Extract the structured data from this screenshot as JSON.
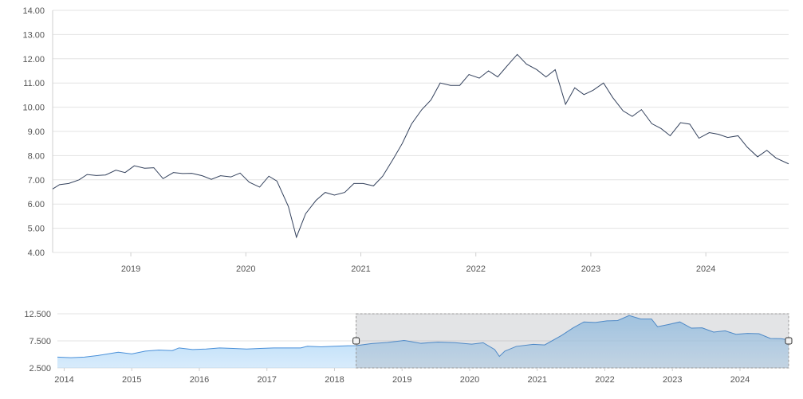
{
  "chart_data": [
    {
      "type": "line",
      "title": "",
      "xlabel": "",
      "ylabel": "",
      "ylim": [
        4.0,
        14.0
      ],
      "xlim": [
        2018.32,
        2024.72
      ],
      "grid": true,
      "legend": "none",
      "y_ticks": [
        "4.00",
        "5.00",
        "6.00",
        "7.00",
        "8.00",
        "9.00",
        "10.00",
        "11.00",
        "12.00",
        "13.00",
        "14.00"
      ],
      "x_ticks": [
        "2019",
        "2020",
        "2021",
        "2022",
        "2023",
        "2024"
      ],
      "line_color": "#33415c",
      "series": [
        {
          "x": [
            2018.32,
            2018.38,
            2018.46,
            2018.55,
            2018.62,
            2018.7,
            2018.78,
            2018.87,
            2018.95,
            2019.03,
            2019.12,
            2019.2,
            2019.28,
            2019.37,
            2019.45,
            2019.53,
            2019.62,
            2019.7,
            2019.78,
            2019.87,
            2019.95,
            2020.03,
            2020.12,
            2020.2,
            2020.27,
            2020.37,
            2020.44,
            2020.52,
            2020.61,
            2020.69,
            2020.77,
            2020.86,
            2020.94,
            2021.02,
            2021.11,
            2021.19,
            2021.28,
            2021.36,
            2021.44,
            2021.53,
            2021.61,
            2021.69,
            2021.78,
            2021.86,
            2021.94,
            2022.03,
            2022.11,
            2022.19,
            2022.28,
            2022.36,
            2022.44,
            2022.53,
            2022.61,
            2022.69,
            2022.78,
            2022.86,
            2022.94,
            2023.02,
            2023.11,
            2023.19,
            2023.28,
            2023.36,
            2023.44,
            2023.53,
            2023.61,
            2023.69,
            2023.78,
            2023.86,
            2023.94,
            2024.03,
            2024.11,
            2024.19,
            2024.28,
            2024.36,
            2024.45,
            2024.53,
            2024.61,
            2024.72
          ],
          "y": [
            6.62,
            6.8,
            6.85,
            7.0,
            7.22,
            7.18,
            7.2,
            7.4,
            7.3,
            7.58,
            7.48,
            7.5,
            7.05,
            7.3,
            7.26,
            7.27,
            7.17,
            7.02,
            7.17,
            7.12,
            7.28,
            6.9,
            6.7,
            7.15,
            6.95,
            5.9,
            4.63,
            5.6,
            6.15,
            6.48,
            6.37,
            6.48,
            6.85,
            6.85,
            6.75,
            7.15,
            7.85,
            8.5,
            9.3,
            9.9,
            10.3,
            11.0,
            10.9,
            10.9,
            11.35,
            11.2,
            11.5,
            11.25,
            11.75,
            12.18,
            11.78,
            11.55,
            11.25,
            11.55,
            10.12,
            10.8,
            10.52,
            10.7,
            11.0,
            10.4,
            9.85,
            9.62,
            9.9,
            9.32,
            9.12,
            8.82,
            9.36,
            9.3,
            8.72,
            8.95,
            8.88,
            8.75,
            8.82,
            8.35,
            7.95,
            8.22,
            7.9,
            7.66
          ]
        }
      ]
    },
    {
      "type": "area",
      "title": "",
      "xlabel": "",
      "ylabel": "",
      "ylim": [
        2.5,
        12.5
      ],
      "xlim": [
        2013.9,
        2024.72
      ],
      "grid": true,
      "legend": "none",
      "y_ticks": [
        "2.500",
        "7.500",
        "12.500"
      ],
      "x_ticks": [
        "2014",
        "2015",
        "2016",
        "2017",
        "2018",
        "2019",
        "2020",
        "2021",
        "2022",
        "2023",
        "2024"
      ],
      "fill_color": "#a9d4f7",
      "line_color": "#4a90d9",
      "selected_range": [
        2018.32,
        2024.72
      ],
      "series": [
        {
          "x": [
            2013.9,
            2014.1,
            2014.3,
            2014.5,
            2014.7,
            2014.8,
            2015.0,
            2015.2,
            2015.4,
            2015.6,
            2015.7,
            2015.9,
            2016.1,
            2016.3,
            2016.5,
            2016.7,
            2016.9,
            2017.1,
            2017.3,
            2017.5,
            2017.6,
            2017.8,
            2018.0,
            2018.2,
            2018.32,
            2018.55,
            2018.78,
            2019.03,
            2019.28,
            2019.53,
            2019.78,
            2020.03,
            2020.2,
            2020.37,
            2020.44,
            2020.52,
            2020.69,
            2020.94,
            2021.11,
            2021.36,
            2021.53,
            2021.69,
            2021.86,
            2022.03,
            2022.19,
            2022.36,
            2022.53,
            2022.69,
            2022.78,
            2022.94,
            2023.11,
            2023.28,
            2023.44,
            2023.61,
            2023.78,
            2023.94,
            2024.11,
            2024.28,
            2024.45,
            2024.61,
            2024.72
          ],
          "y": [
            4.5,
            4.4,
            4.5,
            4.8,
            5.2,
            5.4,
            5.1,
            5.6,
            5.8,
            5.7,
            6.2,
            5.9,
            6.0,
            6.2,
            6.1,
            6.0,
            6.1,
            6.2,
            6.2,
            6.2,
            6.5,
            6.4,
            6.5,
            6.6,
            6.62,
            7.0,
            7.2,
            7.58,
            7.05,
            7.27,
            7.17,
            6.9,
            7.15,
            5.9,
            4.63,
            5.6,
            6.48,
            6.85,
            6.75,
            8.5,
            9.9,
            11.0,
            10.9,
            11.2,
            11.25,
            12.18,
            11.55,
            11.55,
            10.12,
            10.52,
            11.0,
            9.85,
            9.9,
            9.12,
            9.36,
            8.72,
            8.88,
            8.82,
            7.95,
            7.9,
            7.66
          ]
        }
      ]
    }
  ]
}
